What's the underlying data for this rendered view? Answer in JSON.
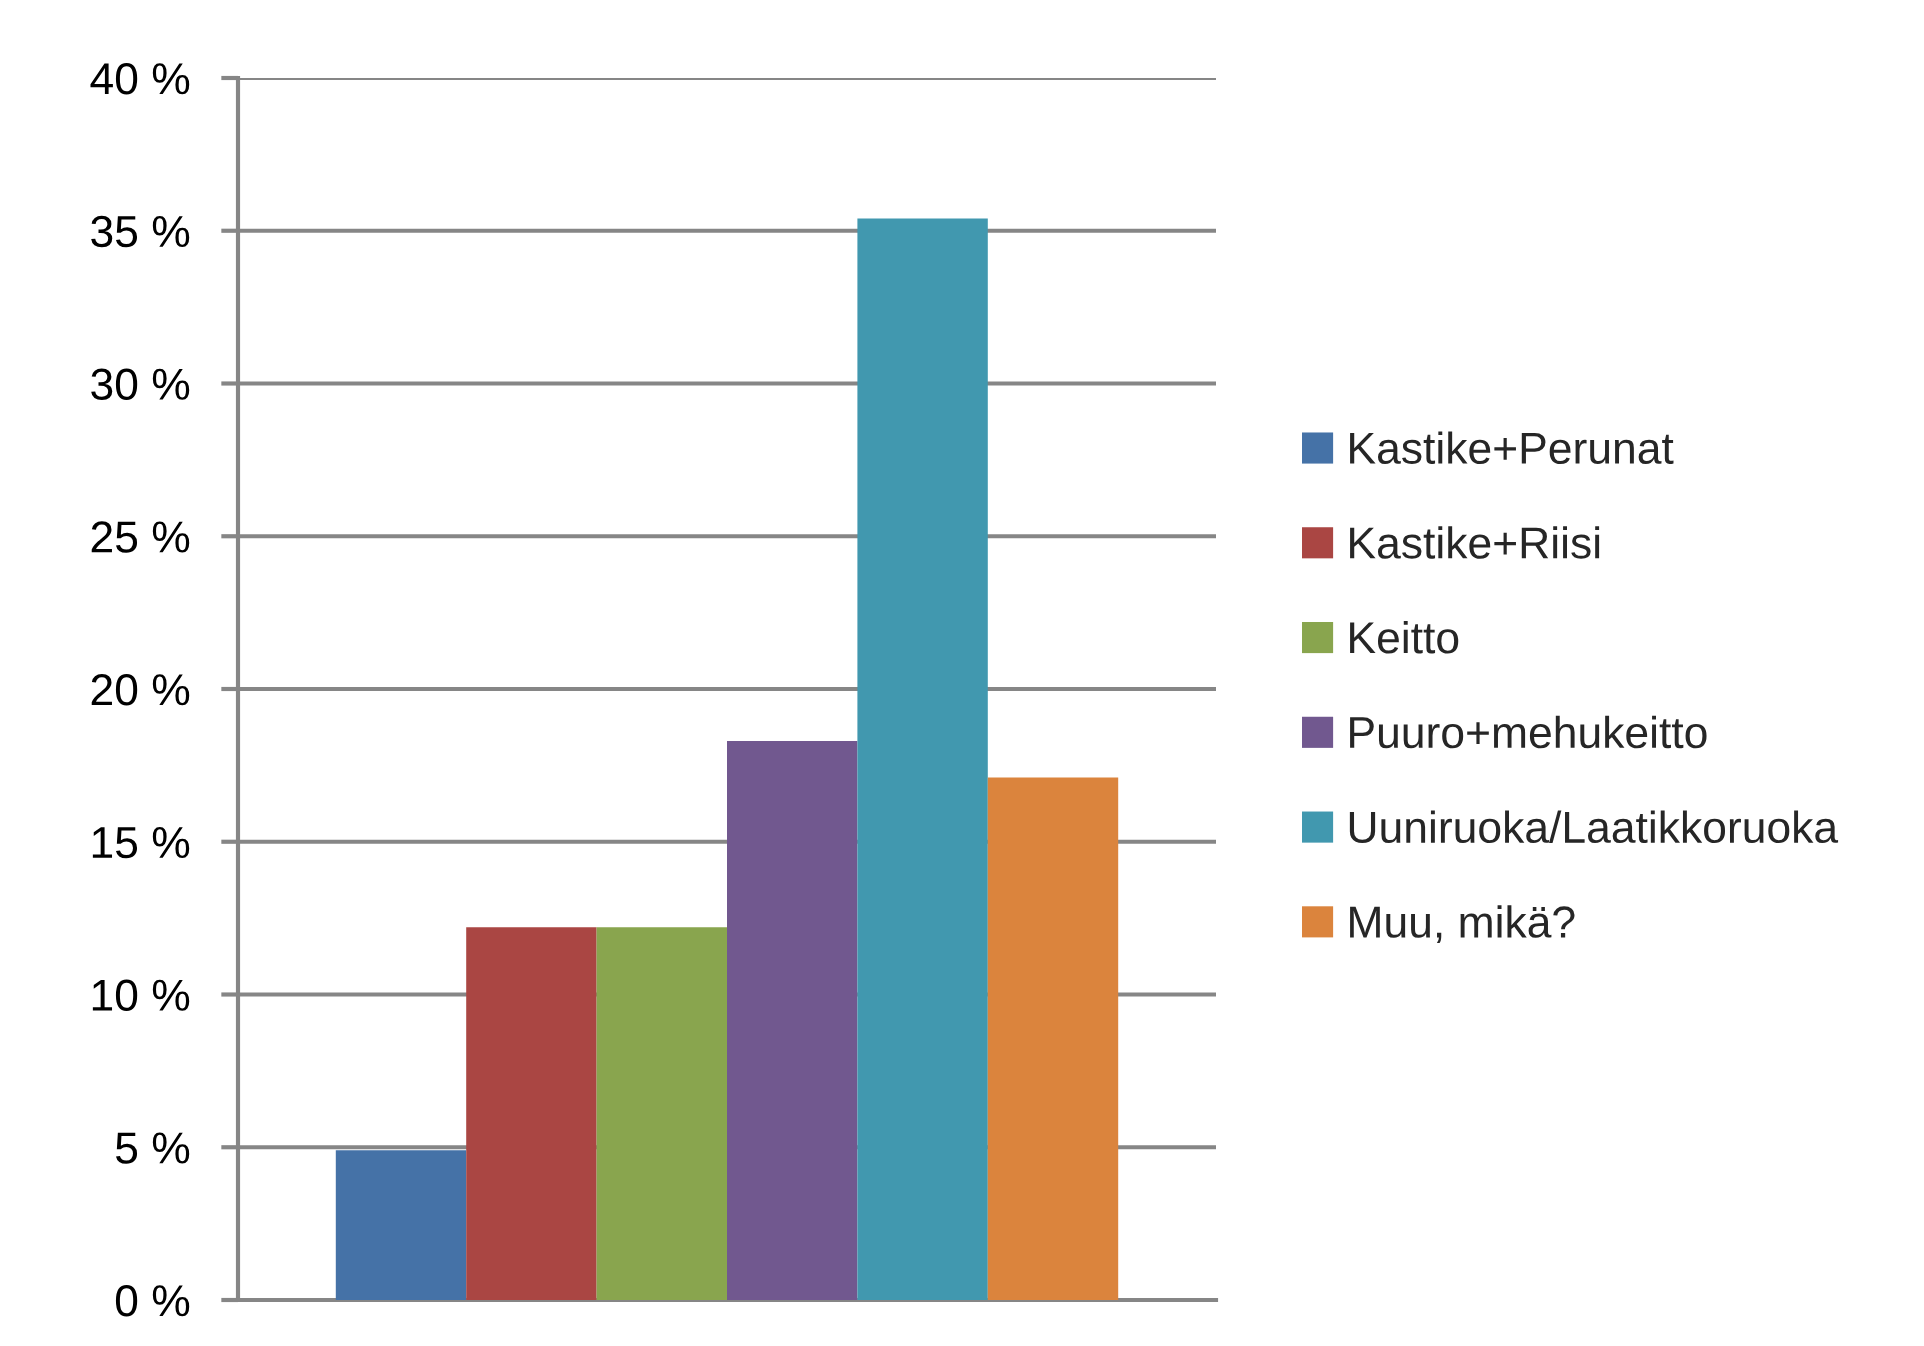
{
  "chart_data": {
    "type": "bar",
    "categories": [
      null
    ],
    "series": [
      {
        "name": "Kastike+Perunat",
        "color": "#4572a7",
        "values": [
          4.9
        ]
      },
      {
        "name": "Kastike+Riisi",
        "color": "#aa4643",
        "values": [
          12.2
        ]
      },
      {
        "name": "Keitto",
        "color": "#89a54e",
        "values": [
          12.2
        ]
      },
      {
        "name": "Puuro+mehukeitto",
        "color": "#71588f",
        "values": [
          18.3
        ]
      },
      {
        "name": "Uuniruoka/Laatikkoruoka",
        "color": "#4198af",
        "values": [
          35.4
        ]
      },
      {
        "name": "Muu, mikä?",
        "color": "#db843d",
        "values": [
          17.1
        ]
      }
    ],
    "ylim": [
      0,
      40
    ],
    "yticks": [
      {
        "value": 0,
        "label": "0 %"
      },
      {
        "value": 5,
        "label": "5 %"
      },
      {
        "value": 10,
        "label": "10 %"
      },
      {
        "value": 15,
        "label": "15 %"
      },
      {
        "value": 20,
        "label": "20 %"
      },
      {
        "value": 25,
        "label": "25 %"
      },
      {
        "value": 30,
        "label": "30 %"
      },
      {
        "value": 35,
        "label": "35 %"
      },
      {
        "value": 40,
        "label": "40 %"
      }
    ],
    "grid": "y",
    "legend": "right"
  }
}
